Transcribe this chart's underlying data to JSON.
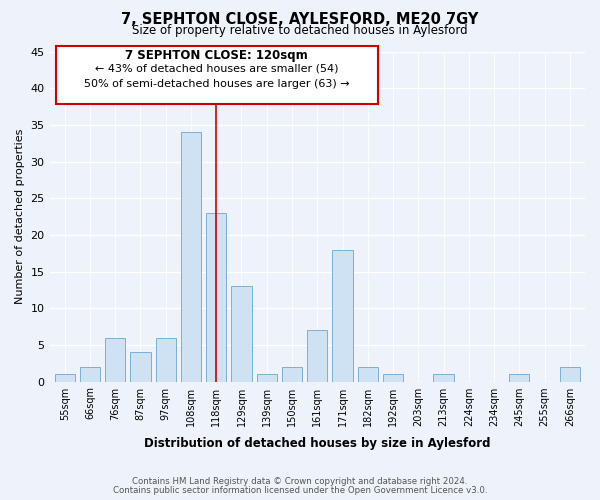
{
  "title": "7, SEPHTON CLOSE, AYLESFORD, ME20 7GY",
  "subtitle": "Size of property relative to detached houses in Aylesford",
  "xlabel": "Distribution of detached houses by size in Aylesford",
  "ylabel": "Number of detached properties",
  "bin_labels": [
    "55sqm",
    "66sqm",
    "76sqm",
    "87sqm",
    "97sqm",
    "108sqm",
    "118sqm",
    "129sqm",
    "139sqm",
    "150sqm",
    "161sqm",
    "171sqm",
    "182sqm",
    "192sqm",
    "203sqm",
    "213sqm",
    "224sqm",
    "234sqm",
    "245sqm",
    "255sqm",
    "266sqm"
  ],
  "bar_values": [
    1,
    2,
    6,
    4,
    6,
    34,
    23,
    13,
    1,
    2,
    7,
    18,
    2,
    1,
    0,
    1,
    0,
    0,
    1,
    0,
    2
  ],
  "highlight_index": 6,
  "bar_color": "#cfe2f3",
  "bar_edge_color": "#7bafd4",
  "highlight_line_color": "#cc0000",
  "annotation_box_edge": "#cc0000",
  "annotation_title": "7 SEPHTON CLOSE: 120sqm",
  "annotation_line1": "← 43% of detached houses are smaller (54)",
  "annotation_line2": "50% of semi-detached houses are larger (63) →",
  "ylim": [
    0,
    45
  ],
  "yticks": [
    0,
    5,
    10,
    15,
    20,
    25,
    30,
    35,
    40,
    45
  ],
  "footnote1": "Contains HM Land Registry data © Crown copyright and database right 2024.",
  "footnote2": "Contains public sector information licensed under the Open Government Licence v3.0.",
  "bg_color": "#eef2fb"
}
